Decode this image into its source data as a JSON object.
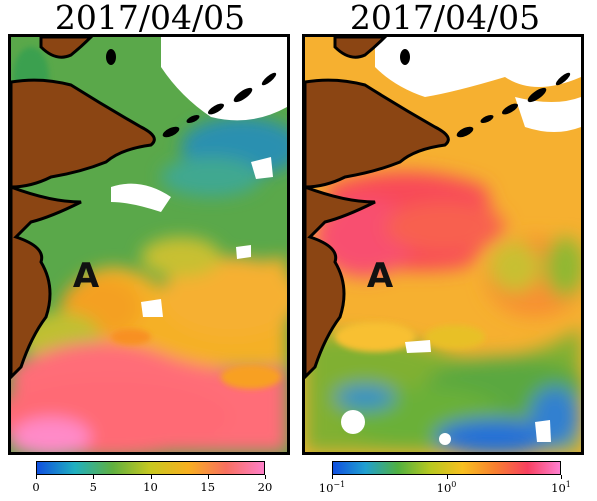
{
  "left_panel": {
    "date": "2017/04/05",
    "label": "A",
    "colorbar": {
      "min": 0,
      "max": 20,
      "scale": "linear",
      "ticks": [
        "0",
        "5",
        "10",
        "15",
        "20"
      ],
      "colors": [
        "#1050e0",
        "#20b0c0",
        "#60b040",
        "#c8c820",
        "#f8b020",
        "#f87060",
        "#ff80c8"
      ]
    }
  },
  "right_panel": {
    "date": "2017/04/05",
    "label": "A",
    "colorbar": {
      "min": 0.1,
      "max": 10,
      "scale": "log",
      "ticks": [
        {
          "base": "10",
          "exp": "−1"
        },
        {
          "base": "10",
          "exp": "0"
        },
        {
          "base": "10",
          "exp": "1"
        }
      ],
      "colors": [
        "#1050e0",
        "#20a0d0",
        "#50b040",
        "#b8c820",
        "#f8c020",
        "#f88030",
        "#f84060",
        "#ff80d0"
      ]
    }
  },
  "colors": {
    "land": "#8b4513",
    "coast": "#000000",
    "no_data": "#ffffff"
  }
}
